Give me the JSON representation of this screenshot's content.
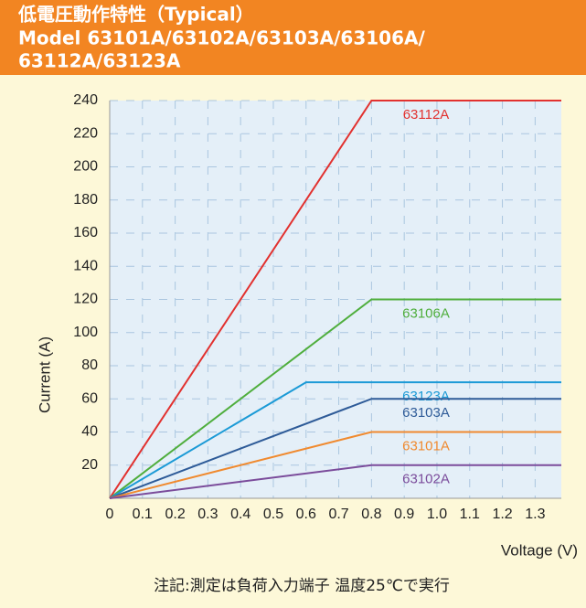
{
  "chart_data": {
    "type": "line",
    "title": [
      "低電圧動作特性（Typical）",
      "Model 63101A/63102A/63103A/63106A/",
      "63112A/63123A"
    ],
    "xlabel": "Voltage (V)",
    "ylabel": "Current (A)",
    "footnote": "注記:測定は負荷入力端子  温度25℃で実行",
    "xlim": [
      0,
      1.38
    ],
    "ylim": [
      0,
      240
    ],
    "xticks": [
      0,
      0.1,
      0.2,
      0.3,
      0.4,
      0.5,
      0.6,
      0.7,
      0.8,
      0.9,
      {
        "value": 1,
        "label": "1.0"
      },
      1.1,
      1.2,
      1.3
    ],
    "yticks": [
      20,
      40,
      60,
      80,
      100,
      120,
      140,
      160,
      180,
      200,
      220,
      240
    ],
    "grid": true,
    "series": [
      {
        "name": "63112A",
        "color": "#e2312f",
        "x": [
          0,
          0.8,
          1.38
        ],
        "values": [
          0,
          240,
          240
        ]
      },
      {
        "name": "63106A",
        "color": "#4fae3d",
        "x": [
          0,
          0.8,
          1.38
        ],
        "values": [
          0,
          120,
          120
        ]
      },
      {
        "name": "63123A",
        "color": "#1b9ad6",
        "x": [
          0,
          0.6,
          1.38
        ],
        "values": [
          0,
          70,
          70
        ]
      },
      {
        "name": "63103A",
        "color": "#2e5b98",
        "x": [
          0,
          0.8,
          1.38
        ],
        "values": [
          0,
          60,
          60
        ]
      },
      {
        "name": "63101A",
        "color": "#f08a2f",
        "x": [
          0,
          0.8,
          1.38
        ],
        "values": [
          0,
          40,
          40
        ]
      },
      {
        "name": "63102A",
        "color": "#7b4c9b",
        "x": [
          0,
          0.8,
          1.38
        ],
        "values": [
          0,
          20,
          20
        ]
      }
    ]
  }
}
